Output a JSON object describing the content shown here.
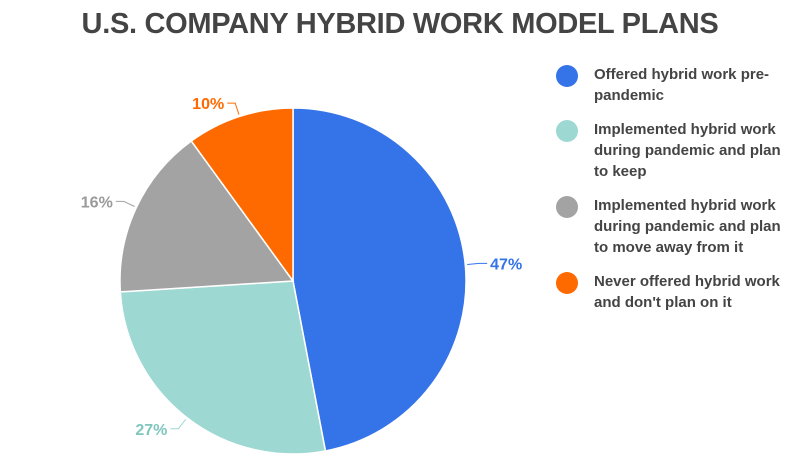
{
  "chart_data": {
    "type": "pie",
    "title": "U.S. COMPANY HYBRID WORK MODEL PLANS",
    "slices": [
      {
        "label": "Offered hybrid work pre-pandemic",
        "value": 47,
        "value_label": "47%",
        "color": "#3574e8"
      },
      {
        "label": "Implemented hybrid work during pandemic and plan to keep",
        "value": 27,
        "value_label": "27%",
        "color": "#9ed8d2"
      },
      {
        "label": "Implemented hybrid work during pandemic and plan to move away from it",
        "value": 16,
        "value_label": "16%",
        "color": "#a3a3a3"
      },
      {
        "label": "Never offered hybrid work and don't plan on it",
        "value": 10,
        "value_label": "10%",
        "color": "#ff6a00"
      }
    ],
    "legend_position": "right"
  }
}
